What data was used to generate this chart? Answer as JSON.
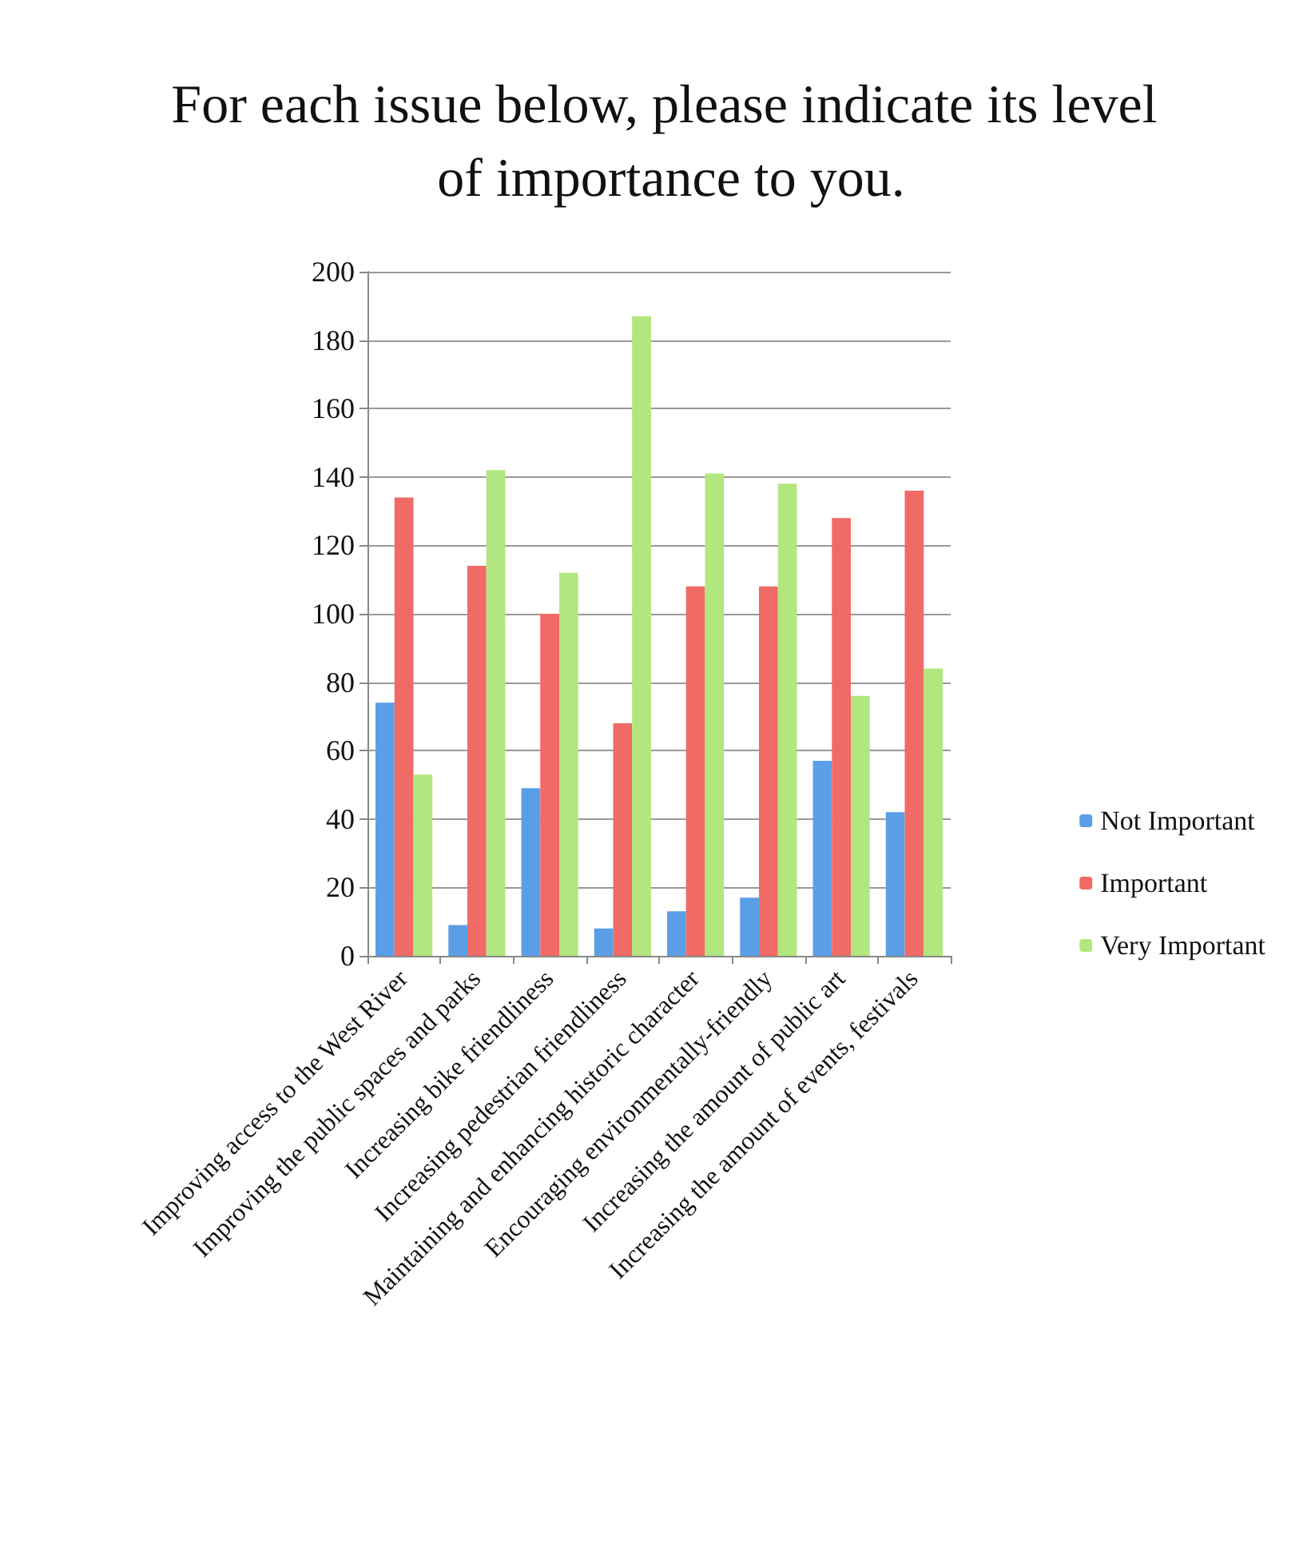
{
  "chart_data": {
    "type": "bar",
    "title": "For each issue below, please indicate its level of importance to you.",
    "categories": [
      "Improving access to the West River",
      "Improving the public spaces and parks",
      "Increasing bike friendliness",
      "Increasing pedestrian friendliness",
      "Maintaining and enhancing historic character",
      "Encouraging environmentally-friendly",
      "Increasing the amount of public art",
      "Increasing the amount of events, festivals"
    ],
    "series": [
      {
        "name": "Not Important",
        "color": "#5b9ee8",
        "values": [
          74,
          9,
          49,
          8,
          13,
          17,
          57,
          42
        ]
      },
      {
        "name": "Important",
        "color": "#f06a66",
        "values": [
          134,
          114,
          100,
          68,
          108,
          108,
          128,
          136
        ]
      },
      {
        "name": "Very Important",
        "color": "#b2e67e",
        "values": [
          53,
          142,
          112,
          187,
          141,
          138,
          76,
          84
        ]
      }
    ],
    "ylim": [
      0,
      200
    ],
    "yticks": [
      0,
      20,
      40,
      60,
      80,
      100,
      120,
      140,
      160,
      180,
      200
    ],
    "grid": "y",
    "legend": "right"
  }
}
